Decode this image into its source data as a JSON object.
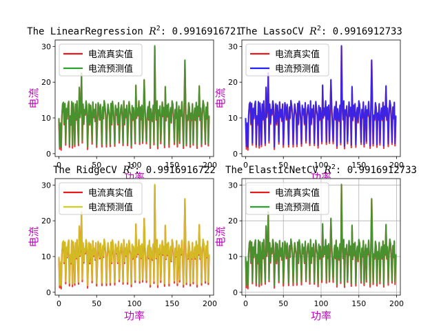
{
  "chart_data": [
    {
      "type": "line",
      "title_text": "The LinearRegression ",
      "title_r2": "R",
      "title_r2_exp": "2",
      "title_value": ": 0.9916916721",
      "xlabel": "功率",
      "ylabel": "电流",
      "xlim": [
        -5,
        205
      ],
      "ylim": [
        -0.8,
        31.8
      ],
      "xticks": [
        0,
        50,
        100,
        150,
        200
      ],
      "yticks": [
        0,
        10,
        20,
        30
      ],
      "grid": false,
      "legend_loc": "upper-left",
      "series": [
        {
          "name": "电流真实值",
          "color": "#e41a1c",
          "source": "true"
        },
        {
          "name": "电流预测值",
          "color": "#2ca02c",
          "source": "pred"
        }
      ]
    },
    {
      "type": "line",
      "title_text": "The LassoCV ",
      "title_r2": "R",
      "title_r2_exp": "2",
      "title_value": ": 0.9916912733",
      "xlabel": "功率",
      "ylabel": "电流",
      "xlim": [
        -5,
        205
      ],
      "ylim": [
        -0.8,
        31.8
      ],
      "xticks": [
        0,
        50,
        100,
        150,
        200
      ],
      "yticks": [
        0,
        10,
        20,
        30
      ],
      "grid": false,
      "legend_loc": "upper-left",
      "series": [
        {
          "name": "电流真实值",
          "color": "#e41a1c",
          "source": "true"
        },
        {
          "name": "电流预测值",
          "color": "#1f1fff",
          "source": "pred"
        }
      ]
    },
    {
      "type": "line",
      "title_text": "The RidgeCV ",
      "title_r2": "R",
      "title_r2_exp": "2",
      "title_value": ": 0.9916916722",
      "xlabel": "功率",
      "ylabel": "电流",
      "xlim": [
        -5,
        205
      ],
      "ylim": [
        -0.8,
        31.8
      ],
      "xticks": [
        0,
        50,
        100,
        150,
        200
      ],
      "yticks": [
        0,
        10,
        20,
        30
      ],
      "grid": false,
      "legend_loc": "upper-left",
      "series": [
        {
          "name": "电流真实值",
          "color": "#e41a1c",
          "source": "true"
        },
        {
          "name": "电流预测值",
          "color": "#cfcf1f",
          "source": "pred"
        }
      ]
    },
    {
      "type": "line",
      "title_text": "The ElasticNetCV ",
      "title_r2": "R",
      "title_r2_exp": "2",
      "title_value": ": 0.9916912733",
      "xlabel": "功率",
      "ylabel": "电流",
      "xlim": [
        -5,
        205
      ],
      "ylim": [
        -0.8,
        31.8
      ],
      "xticks": [
        0,
        50,
        100,
        150,
        200
      ],
      "yticks": [
        0,
        10,
        20,
        30
      ],
      "grid": true,
      "legend_loc": "upper-left",
      "series": [
        {
          "name": "电流真实值",
          "color": "#e41a1c",
          "source": "true"
        },
        {
          "name": "电流预测值",
          "color": "#2ca02c",
          "source": "pred"
        }
      ]
    }
  ],
  "shared_series": {
    "x": [
      0,
      1,
      2,
      3,
      4,
      5,
      6,
      7,
      8,
      9,
      10,
      11,
      12,
      13,
      14,
      15,
      16,
      17,
      18,
      19,
      20,
      21,
      22,
      23,
      24,
      25,
      26,
      27,
      28,
      29,
      30,
      31,
      32,
      33,
      34,
      35,
      36,
      37,
      38,
      39,
      40,
      41,
      42,
      43,
      44,
      45,
      46,
      47,
      48,
      49,
      50,
      51,
      52,
      53,
      54,
      55,
      56,
      57,
      58,
      59,
      60,
      61,
      62,
      63,
      64,
      65,
      66,
      67,
      68,
      69,
      70,
      71,
      72,
      73,
      74,
      75,
      76,
      77,
      78,
      79,
      80,
      81,
      82,
      83,
      84,
      85,
      86,
      87,
      88,
      89,
      90,
      91,
      92,
      93,
      94,
      95,
      96,
      97,
      98,
      99,
      100,
      101,
      102,
      103,
      104,
      105,
      106,
      107,
      108,
      109,
      110,
      111,
      112,
      113,
      114,
      115,
      116,
      117,
      118,
      119,
      120,
      121,
      122,
      123,
      124,
      125,
      126,
      127,
      128,
      129,
      130,
      131,
      132,
      133,
      134,
      135,
      136,
      137,
      138,
      139,
      140,
      141,
      142,
      143,
      144,
      145,
      146,
      147,
      148,
      149,
      150,
      151,
      152,
      153,
      154,
      155,
      156,
      157,
      158,
      159,
      160,
      161,
      162,
      163,
      164,
      165,
      166,
      167,
      168,
      169,
      170,
      171,
      172,
      173,
      174,
      175,
      176,
      177,
      178,
      179,
      180,
      181,
      182,
      183,
      184,
      185,
      186,
      187,
      188,
      189,
      190,
      191,
      192,
      193,
      194,
      195,
      196,
      197,
      198,
      199
    ],
    "true": [
      9.7,
      1.3,
      8.2,
      1.0,
      10.5,
      13.8,
      14.2,
      8.1,
      13.9,
      2.4,
      12.4,
      9.7,
      13.3,
      14.5,
      1.8,
      10.3,
      8.0,
      14.4,
      1.6,
      14.0,
      10.6,
      2.0,
      13.7,
      9.4,
      14.6,
      8.3,
      2.3,
      18.4,
      10.1,
      12.4,
      22.5,
      3.0,
      13.7,
      8.2,
      12.1,
      10.8,
      14.6,
      13.1,
      1.2,
      9.6,
      13.8,
      8.0,
      13.4,
      10.8,
      2.7,
      14.3,
      10.1,
      12.1,
      9.0,
      13.7,
      1.8,
      8.3,
      14.1,
      12.6,
      9.4,
      13.6,
      10.0,
      1.9,
      12.8,
      9.8,
      14.7,
      13.2,
      10.8,
      1.9,
      9.6,
      13.7,
      12.0,
      10.4,
      2.0,
      13.9,
      8.1,
      14.5,
      12.6,
      9.1,
      2.1,
      13.3,
      10.8,
      12.3,
      8.1,
      14.1,
      3.0,
      9.6,
      12.4,
      13.5,
      10.3,
      2.3,
      14.6,
      8.1,
      12.2,
      10.1,
      13.4,
      2.3,
      9.5,
      14.4,
      12.0,
      10.6,
      1.6,
      13.2,
      9.3,
      12.6,
      10.1,
      2.8,
      19.0,
      9.9,
      12.5,
      10.6,
      14.6,
      2.6,
      12.8,
      9.5,
      13.4,
      2.9,
      10.3,
      20.6,
      13.2,
      8.0,
      2.8,
      10.7,
      12.9,
      9.4,
      14.4,
      1.5,
      12.3,
      10.1,
      9.0,
      13.4,
      2.5,
      30.0,
      13.7,
      9.4,
      14.6,
      1.4,
      12.0,
      10.6,
      13.1,
      2.8,
      9.3,
      14.3,
      10.4,
      12.7,
      1.7,
      18.6,
      9.2,
      13.4,
      10.3,
      13.8,
      1.8,
      10.9,
      12.6,
      8.6,
      14.6,
      13.6,
      9.7,
      2.6,
      12.1,
      9.9,
      14.3,
      1.9,
      10.4,
      13.1,
      2.9,
      12.0,
      10.5,
      14.4,
      9.2,
      1.5,
      12.6,
      26.0,
      13.2,
      2.2,
      10.5,
      9.3,
      14.1,
      12.6,
      1.8,
      11.1,
      9.3,
      13.8,
      2.4,
      10.1,
      12.5,
      9.3,
      14.2,
      1.5,
      13.0,
      10.4,
      18.8,
      9.3,
      12.5,
      2.0,
      10.5,
      14.7,
      13.5,
      9.6,
      2.6,
      12.8,
      9.7,
      14.2,
      2.2,
      10.4,
      13.4,
      12.4
    ],
    "pred": [
      10.0,
      2.0,
      8.6,
      1.8,
      10.8,
      14.0,
      14.4,
      8.5,
      14.1,
      3.0,
      12.7,
      10.0,
      13.6,
      14.7,
      2.5,
      10.6,
      8.4,
      14.6,
      2.3,
      14.2,
      10.9,
      2.6,
      13.9,
      9.7,
      14.8,
      8.7,
      2.9,
      18.6,
      10.4,
      12.7,
      22.6,
      3.6,
      13.9,
      8.6,
      12.4,
      11.1,
      14.8,
      13.4,
      1.9,
      9.9,
      14.0,
      8.4,
      13.6,
      11.1,
      3.3,
      14.5,
      10.4,
      12.4,
      9.3,
      13.9,
      2.5,
      8.7,
      14.3,
      12.9,
      9.7,
      13.8,
      10.3,
      2.6,
      13.1,
      10.1,
      14.9,
      13.5,
      11.1,
      2.6,
      9.9,
      13.9,
      12.3,
      10.7,
      2.7,
      14.1,
      8.5,
      14.7,
      12.9,
      9.4,
      2.8,
      13.6,
      11.1,
      12.6,
      8.5,
      14.3,
      3.6,
      9.9,
      12.7,
      13.7,
      10.6,
      2.9,
      14.8,
      8.5,
      12.5,
      10.4,
      13.6,
      2.9,
      9.8,
      14.6,
      12.3,
      10.9,
      2.3,
      13.5,
      9.6,
      12.9,
      10.4,
      3.4,
      19.2,
      10.2,
      12.8,
      10.9,
      14.8,
      3.2,
      13.1,
      9.8,
      13.6,
      3.5,
      10.6,
      20.7,
      13.5,
      8.4,
      3.4,
      11.0,
      13.2,
      9.7,
      14.6,
      2.2,
      12.6,
      10.4,
      9.3,
      13.6,
      3.1,
      30.2,
      13.9,
      9.7,
      14.8,
      2.1,
      12.3,
      10.9,
      13.4,
      3.4,
      9.6,
      14.5,
      10.7,
      13.0,
      2.4,
      18.8,
      9.5,
      13.6,
      10.6,
      14.0,
      2.5,
      11.2,
      12.9,
      8.9,
      14.8,
      13.8,
      10.0,
      3.2,
      12.4,
      10.2,
      14.5,
      2.6,
      10.7,
      13.4,
      3.5,
      12.3,
      10.8,
      14.6,
      9.5,
      2.2,
      12.9,
      26.2,
      13.5,
      2.8,
      10.8,
      9.6,
      14.3,
      12.9,
      2.5,
      11.4,
      9.6,
      14.0,
      3.0,
      10.4,
      12.8,
      9.6,
      14.4,
      2.2,
      13.3,
      10.7,
      19.0,
      9.6,
      12.8,
      2.7,
      10.8,
      14.9,
      13.7,
      9.9,
      3.2,
      13.1,
      10.0,
      14.4,
      2.8,
      10.7,
      13.6,
      12.7
    ]
  }
}
